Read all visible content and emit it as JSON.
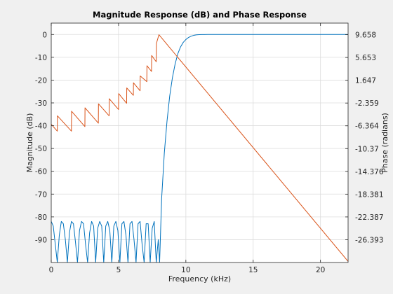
{
  "chart_data": {
    "type": "line",
    "title": "Magnitude Response (dB) and Phase Response",
    "xlabel": "Frequency (kHz)",
    "ylabel_left": "Magnitude (dB)",
    "ylabel_right": "Phase (radians)",
    "xlim": [
      0,
      22.05
    ],
    "ylim_left": [
      -100,
      5
    ],
    "ylim_right": [
      -30.4,
      11.7
    ],
    "xticks": [
      0,
      5,
      10,
      15,
      20
    ],
    "yticks_left": [
      0,
      -10,
      -20,
      -30,
      -40,
      -50,
      -60,
      -70,
      -80,
      -90
    ],
    "yticks_right": [
      "9.658",
      "5.653",
      "1.647",
      "-2.359",
      "-6.364",
      "-10.37",
      "-14.376",
      "-18.381",
      "-22.387",
      "-26.393"
    ],
    "yticks_right_values": [
      9.658,
      5.653,
      1.647,
      -2.359,
      -6.364,
      -10.37,
      -14.376,
      -18.381,
      -22.387,
      -26.393
    ],
    "grid": true,
    "colors": {
      "magnitude": "#0072bd",
      "phase": "#d95319"
    },
    "series": [
      {
        "axis": "left",
        "x": [
          0,
          0.15,
          0.3,
          0.45,
          0.6,
          0.75,
          0.9,
          1.05,
          1.2,
          1.35,
          1.5,
          1.65,
          1.8,
          1.95,
          2.1,
          2.25,
          2.4,
          2.55,
          2.7,
          2.85,
          3.0,
          3.15,
          3.3,
          3.45,
          3.6,
          3.75,
          3.9,
          4.05,
          4.2,
          4.35,
          4.5,
          4.65,
          4.8,
          4.95,
          5.1,
          5.25,
          5.4,
          5.55,
          5.7,
          5.85,
          6.0,
          6.15,
          6.3,
          6.45,
          6.6,
          6.75,
          6.9,
          7.05,
          7.2,
          7.35,
          7.5,
          7.65,
          7.8,
          7.95,
          8.05,
          8.2,
          8.4,
          8.6,
          8.8,
          9.0,
          9.2,
          9.4,
          9.6,
          9.8,
          10.0,
          10.2,
          10.4,
          10.6,
          10.8,
          11.0,
          11.2,
          11.4,
          11.6,
          11.8,
          12.0,
          14.0,
          16.0,
          18.0,
          20.0,
          22.05
        ],
        "values": [
          -82,
          -84,
          -92,
          -100,
          -88,
          -82,
          -83,
          -90,
          -100,
          -87,
          -82,
          -83,
          -91,
          -100,
          -86,
          -82,
          -83,
          -92,
          -100,
          -87,
          -82,
          -84,
          -100,
          -85,
          -82,
          -84,
          -100,
          -84,
          -82,
          -86,
          -100,
          -84,
          -82,
          -86,
          -100,
          -83,
          -82,
          -88,
          -100,
          -83,
          -82,
          -90,
          -100,
          -83,
          -82,
          -92,
          -100,
          -83,
          -83,
          -100,
          -85,
          -82,
          -100,
          -90,
          -100,
          -72,
          -52,
          -38,
          -27,
          -19,
          -13,
          -8.5,
          -5.5,
          -3.5,
          -2.2,
          -1.3,
          -0.7,
          -0.35,
          -0.15,
          -0.06,
          -0.02,
          -0.01,
          0,
          0,
          0,
          0,
          0,
          0,
          0,
          0
        ]
      },
      {
        "axis": "right",
        "x": [
          0,
          0.45,
          0.46,
          1.5,
          1.51,
          2.5,
          2.51,
          3.5,
          3.51,
          4.3,
          4.31,
          5.0,
          5.01,
          5.6,
          5.61,
          6.1,
          6.11,
          6.6,
          6.61,
          7.1,
          7.11,
          7.45,
          7.46,
          7.8,
          7.81,
          8.0,
          22.05
        ],
        "values": [
          -6.1,
          -7.3,
          -4.6,
          -7.3,
          -3.8,
          -6.5,
          -3.2,
          -5.9,
          -2.5,
          -4.6,
          -1.6,
          -3.5,
          -0.7,
          -2.4,
          0.3,
          -1.0,
          1.2,
          -0.2,
          2.4,
          1.4,
          4.2,
          3.2,
          6.0,
          4.9,
          8.1,
          9.658,
          -30.2
        ]
      }
    ]
  }
}
